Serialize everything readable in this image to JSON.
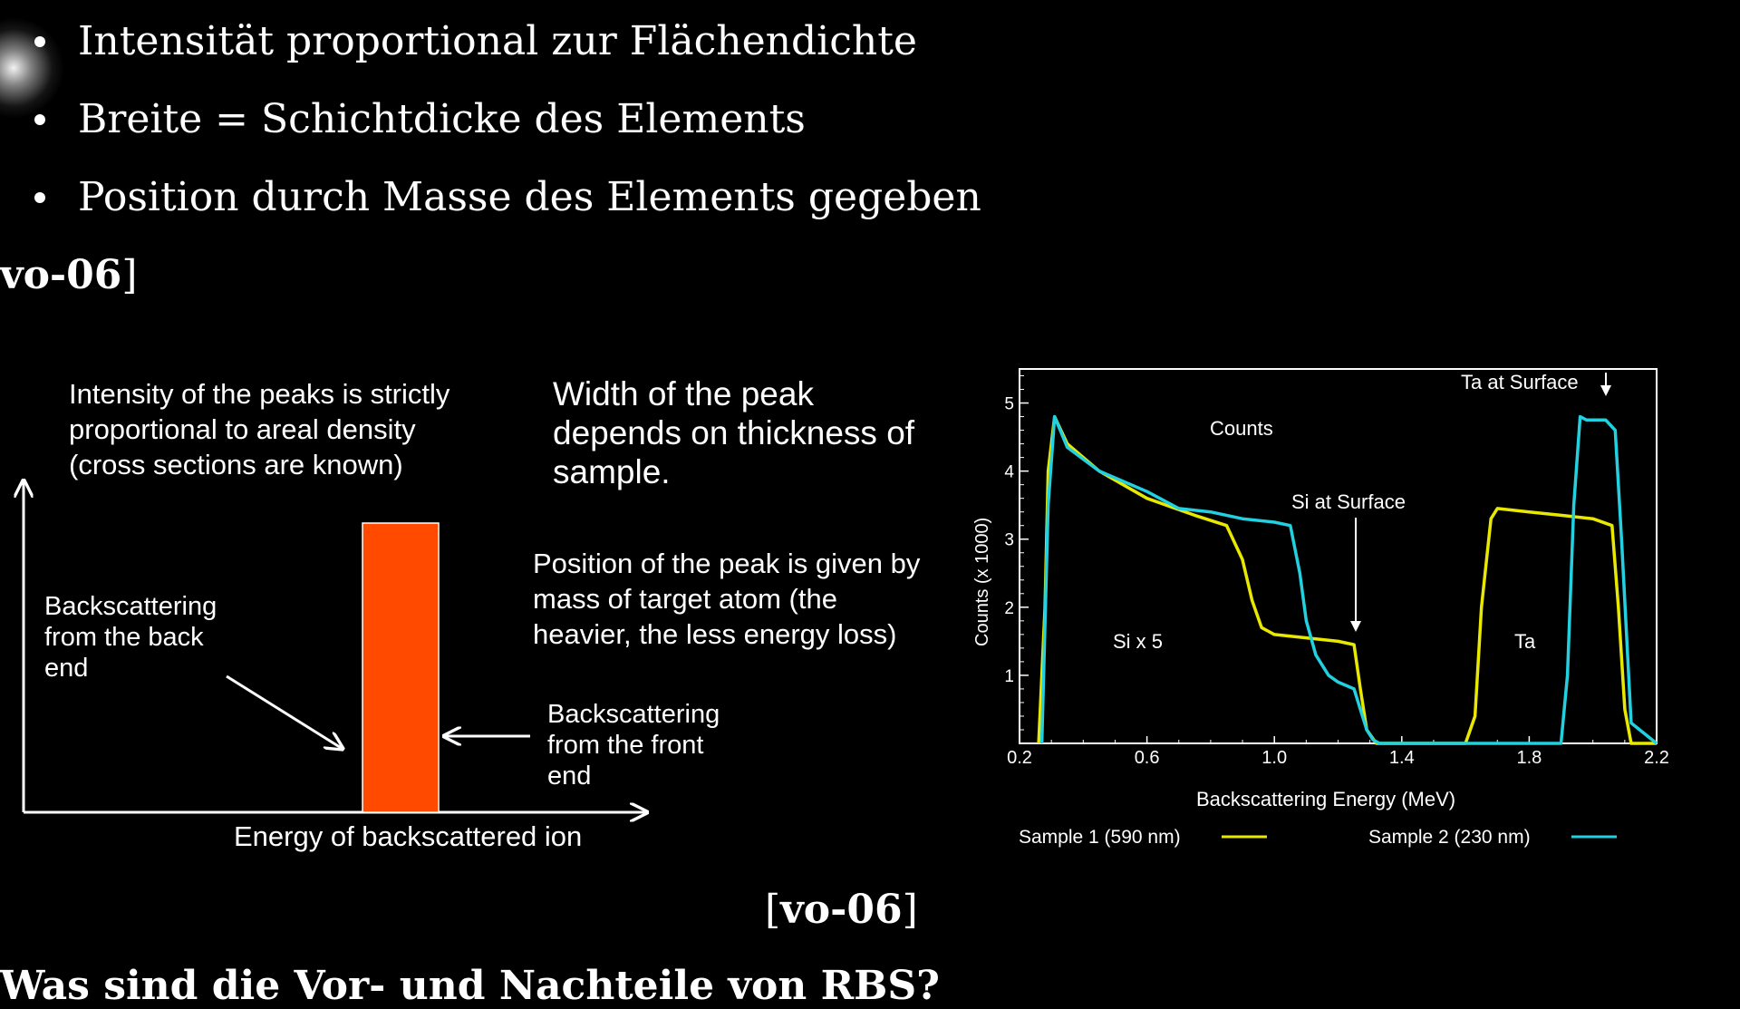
{
  "bullets": [
    "Intensität proportional zur Flächendichte",
    "Breite = Schichtdicke des Elements",
    "Position durch Masse des Elements gegeben"
  ],
  "ref_top": {
    "name": "vo-06",
    "close": "]"
  },
  "ref_bottom": {
    "open": "[",
    "name": "vo-06",
    "close": "]"
  },
  "next_heading": "Was sind die Vor- und Nachteile von RBS?",
  "schematic": {
    "intensity_note": "Intensity of the peaks is strictly\nproportional to areal density\n(cross sections are known)",
    "width_note": "Width of the peak\ndepends on thickness of\nsample.",
    "position_note": "Position of the peak is given by\nmass of target atom (the\nheavier, the less energy loss)",
    "back_end_label": "Backscattering\nfrom the back\nend",
    "front_end_label": "Backscattering\nfrom the front\nend",
    "x_axis_label": "Energy of backscattered ion",
    "peak_color": "#ff4a00"
  },
  "chart_data": {
    "type": "line",
    "xlabel": "Backscattering Energy (MeV)",
    "ylabel": "Counts (x 1000)",
    "xlim": [
      0.2,
      2.2
    ],
    "ylim": [
      0,
      5.5
    ],
    "xticks": [
      "0.2",
      "0.6",
      "1.0",
      "1.4",
      "1.8",
      "2.2"
    ],
    "yticks": [
      "1",
      "2",
      "3",
      "4",
      "5"
    ],
    "annotations": {
      "counts": "Counts",
      "si_surface": "Si at Surface",
      "ta_surface": "Ta at Surface",
      "si_x5": "Si x 5",
      "ta": "Ta"
    },
    "series": [
      {
        "name": "Sample 1 (590 nm)",
        "color": "#e8e800",
        "x": [
          0.26,
          0.28,
          0.29,
          0.31,
          0.35,
          0.45,
          0.6,
          0.75,
          0.85,
          0.9,
          0.93,
          0.96,
          1.0,
          1.1,
          1.2,
          1.25,
          1.27,
          1.29,
          1.32,
          1.35,
          1.6,
          1.63,
          1.65,
          1.68,
          1.7,
          1.8,
          1.9,
          2.0,
          2.06,
          2.08,
          2.1,
          2.12,
          2.2
        ],
        "y": [
          0,
          2.0,
          4.0,
          4.8,
          4.4,
          4.0,
          3.6,
          3.35,
          3.2,
          2.7,
          2.1,
          1.7,
          1.6,
          1.55,
          1.5,
          1.45,
          0.8,
          0.2,
          0,
          0,
          0,
          0.4,
          2.0,
          3.3,
          3.45,
          3.4,
          3.35,
          3.3,
          3.2,
          2.0,
          0.5,
          0,
          0
        ]
      },
      {
        "name": "Sample 2 (230 nm)",
        "color": "#22d0e0",
        "x": [
          0.27,
          0.29,
          0.31,
          0.35,
          0.45,
          0.6,
          0.7,
          0.8,
          0.9,
          1.0,
          1.05,
          1.08,
          1.1,
          1.13,
          1.17,
          1.2,
          1.25,
          1.27,
          1.29,
          1.31,
          1.33,
          1.35,
          1.9,
          1.92,
          1.94,
          1.96,
          1.98,
          2.04,
          2.07,
          2.09,
          2.12,
          2.2
        ],
        "y": [
          0,
          3.5,
          4.8,
          4.35,
          4.0,
          3.7,
          3.45,
          3.4,
          3.3,
          3.25,
          3.2,
          2.5,
          1.8,
          1.3,
          1.0,
          0.9,
          0.8,
          0.5,
          0.2,
          0.05,
          0,
          0,
          0,
          1.0,
          3.5,
          4.8,
          4.75,
          4.75,
          4.6,
          3.0,
          0.3,
          0
        ]
      }
    ]
  }
}
